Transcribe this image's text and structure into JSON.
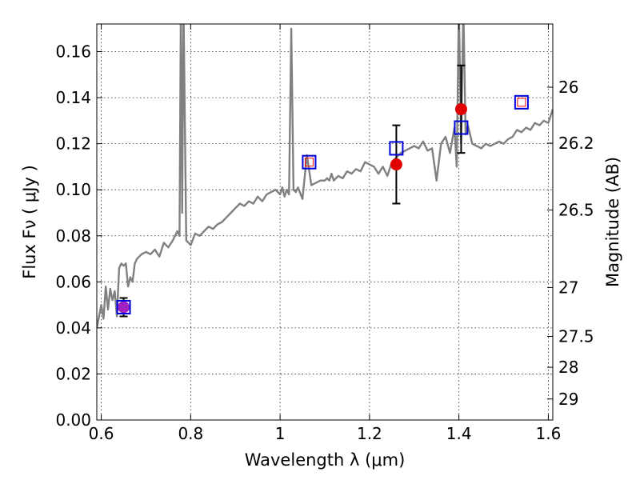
{
  "chart_data": {
    "type": "scatter",
    "title": "",
    "xlabel": "Wavelength  λ (μm)",
    "ylabel": "Flux  Fν  ( μJy )",
    "y2label": "Magnitude (AB)",
    "xlim": [
      0.59,
      1.61
    ],
    "ylim": [
      0.0,
      0.172
    ],
    "grid": true,
    "x_ticks": [
      0.6,
      0.8,
      1.0,
      1.2,
      1.4,
      1.6
    ],
    "x_tick_labels": [
      "0.6",
      "0.8",
      "1",
      "1.2",
      "1.4",
      "1.6"
    ],
    "y_ticks": [
      0.0,
      0.02,
      0.04,
      0.06,
      0.08,
      0.1,
      0.12,
      0.14,
      0.16
    ],
    "y_tick_labels": [
      "0.00",
      "0.02",
      "0.04",
      "0.06",
      "0.08",
      "0.10",
      "0.12",
      "0.14",
      "0.16"
    ],
    "mag_ticks": [
      26,
      26.2,
      26.5,
      27,
      27.5,
      28,
      29
    ],
    "mag_tick_labels": [
      "26",
      "26.2",
      "26.5",
      "27",
      "27.5",
      "28",
      "29"
    ],
    "colors": {
      "spectrum": "#808080",
      "observed": "#e00000",
      "observed_first": "#a020c0",
      "model_box": "#0000dd",
      "model_inner": "#ff0000",
      "errorbar": "#000000"
    },
    "series": [
      {
        "type": "line",
        "x": [
          0.59,
          0.6,
          0.605,
          0.61,
          0.615,
          0.62,
          0.625,
          0.63,
          0.635,
          0.64,
          0.645,
          0.65,
          0.655,
          0.66,
          0.665,
          0.67,
          0.675,
          0.68,
          0.69,
          0.7,
          0.71,
          0.72,
          0.73,
          0.74,
          0.75,
          0.76,
          0.77,
          0.775,
          0.778,
          0.781,
          0.784,
          0.79,
          0.8,
          0.81,
          0.82,
          0.83,
          0.84,
          0.85,
          0.86,
          0.87,
          0.88,
          0.89,
          0.9,
          0.91,
          0.92,
          0.93,
          0.94,
          0.95,
          0.96,
          0.97,
          0.98,
          0.99,
          1.0,
          1.005,
          1.01,
          1.015,
          1.02,
          1.025,
          1.03,
          1.035,
          1.04,
          1.05,
          1.06,
          1.07,
          1.08,
          1.09,
          1.1,
          1.105,
          1.11,
          1.115,
          1.12,
          1.13,
          1.14,
          1.15,
          1.16,
          1.17,
          1.18,
          1.19,
          1.2,
          1.21,
          1.22,
          1.23,
          1.24,
          1.25,
          1.26,
          1.27,
          1.28,
          1.29,
          1.3,
          1.31,
          1.32,
          1.33,
          1.34,
          1.35,
          1.36,
          1.37,
          1.38,
          1.39,
          1.395,
          1.4,
          1.405,
          1.41,
          1.415,
          1.42,
          1.43,
          1.44,
          1.45,
          1.46,
          1.47,
          1.48,
          1.49,
          1.5,
          1.51,
          1.52,
          1.53,
          1.54,
          1.55,
          1.56,
          1.57,
          1.58,
          1.59,
          1.6,
          1.61
        ],
        "y": [
          0.04,
          0.05,
          0.044,
          0.058,
          0.048,
          0.057,
          0.052,
          0.056,
          0.045,
          0.066,
          0.068,
          0.067,
          0.068,
          0.058,
          0.062,
          0.06,
          0.068,
          0.07,
          0.072,
          0.073,
          0.072,
          0.074,
          0.071,
          0.077,
          0.075,
          0.078,
          0.082,
          0.08,
          0.18,
          0.09,
          0.18,
          0.078,
          0.076,
          0.081,
          0.08,
          0.082,
          0.084,
          0.083,
          0.085,
          0.086,
          0.088,
          0.09,
          0.092,
          0.094,
          0.093,
          0.095,
          0.094,
          0.097,
          0.095,
          0.098,
          0.099,
          0.1,
          0.098,
          0.101,
          0.097,
          0.1,
          0.098,
          0.17,
          0.1,
          0.099,
          0.101,
          0.096,
          0.115,
          0.102,
          0.103,
          0.104,
          0.104,
          0.105,
          0.104,
          0.107,
          0.104,
          0.106,
          0.105,
          0.108,
          0.107,
          0.109,
          0.108,
          0.112,
          0.111,
          0.11,
          0.107,
          0.11,
          0.106,
          0.112,
          0.114,
          0.116,
          0.117,
          0.118,
          0.119,
          0.118,
          0.121,
          0.117,
          0.118,
          0.104,
          0.12,
          0.123,
          0.116,
          0.127,
          0.11,
          0.18,
          0.12,
          0.18,
          0.124,
          0.128,
          0.12,
          0.119,
          0.118,
          0.12,
          0.119,
          0.12,
          0.121,
          0.12,
          0.122,
          0.123,
          0.126,
          0.125,
          0.127,
          0.126,
          0.129,
          0.128,
          0.13,
          0.129,
          0.135
        ]
      },
      {
        "type": "errorbar",
        "points": [
          {
            "x": 0.65,
            "y": 0.049,
            "yerr": 0.004
          },
          {
            "x": 1.26,
            "y": 0.111,
            "yerr": 0.017
          },
          {
            "x": 1.405,
            "y": 0.135,
            "yerr": 0.019
          }
        ]
      },
      {
        "type": "scatter",
        "marker": "circle",
        "points": [
          {
            "x": 0.65,
            "y": 0.049
          },
          {
            "x": 1.26,
            "y": 0.111
          },
          {
            "x": 1.405,
            "y": 0.135
          }
        ]
      },
      {
        "type": "scatter",
        "marker": "square",
        "points": [
          {
            "x": 0.65,
            "y": 0.049
          },
          {
            "x": 1.065,
            "y": 0.112
          },
          {
            "x": 1.26,
            "y": 0.118
          },
          {
            "x": 1.405,
            "y": 0.127
          },
          {
            "x": 1.54,
            "y": 0.138
          }
        ]
      },
      {
        "type": "scatter",
        "marker": "small-square",
        "points": [
          {
            "x": 1.065,
            "y": 0.112
          },
          {
            "x": 1.54,
            "y": 0.138
          }
        ]
      }
    ]
  }
}
